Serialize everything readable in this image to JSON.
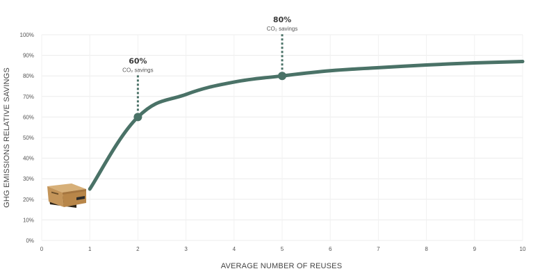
{
  "chart_data": {
    "type": "line",
    "xlabel": "AVERAGE NUMBER OF REUSES",
    "ylabel": "GHG EMISSIONS RELATIVE SAVINGS",
    "xlim": [
      0,
      10
    ],
    "ylim": [
      0,
      100
    ],
    "x_ticks": [
      "0",
      "1",
      "2",
      "3",
      "4",
      "5",
      "6",
      "7",
      "8",
      "9",
      "10"
    ],
    "y_ticks": [
      "0%",
      "10%",
      "20%",
      "30%",
      "40%",
      "50%",
      "60%",
      "70%",
      "80%",
      "90%",
      "100%"
    ],
    "grid": true,
    "color": "#4a7267",
    "series": [
      {
        "x": [
          1,
          2,
          3,
          4,
          5,
          6,
          7,
          8,
          9,
          10
        ],
        "values": [
          25,
          60,
          71,
          77,
          80,
          82.5,
          84,
          85.3,
          86.3,
          87
        ]
      }
    ],
    "markers": [
      {
        "x": 2,
        "y": 60
      },
      {
        "x": 5,
        "y": 80
      }
    ],
    "annotations": [
      {
        "x": 2,
        "y": 60,
        "value": "60%",
        "label": "CO₂ savings"
      },
      {
        "x": 5,
        "y": 80,
        "value": "80%",
        "label": "CO₂ savings"
      }
    ],
    "legend": "none",
    "icons": [
      "cardboard-box-icon"
    ]
  }
}
